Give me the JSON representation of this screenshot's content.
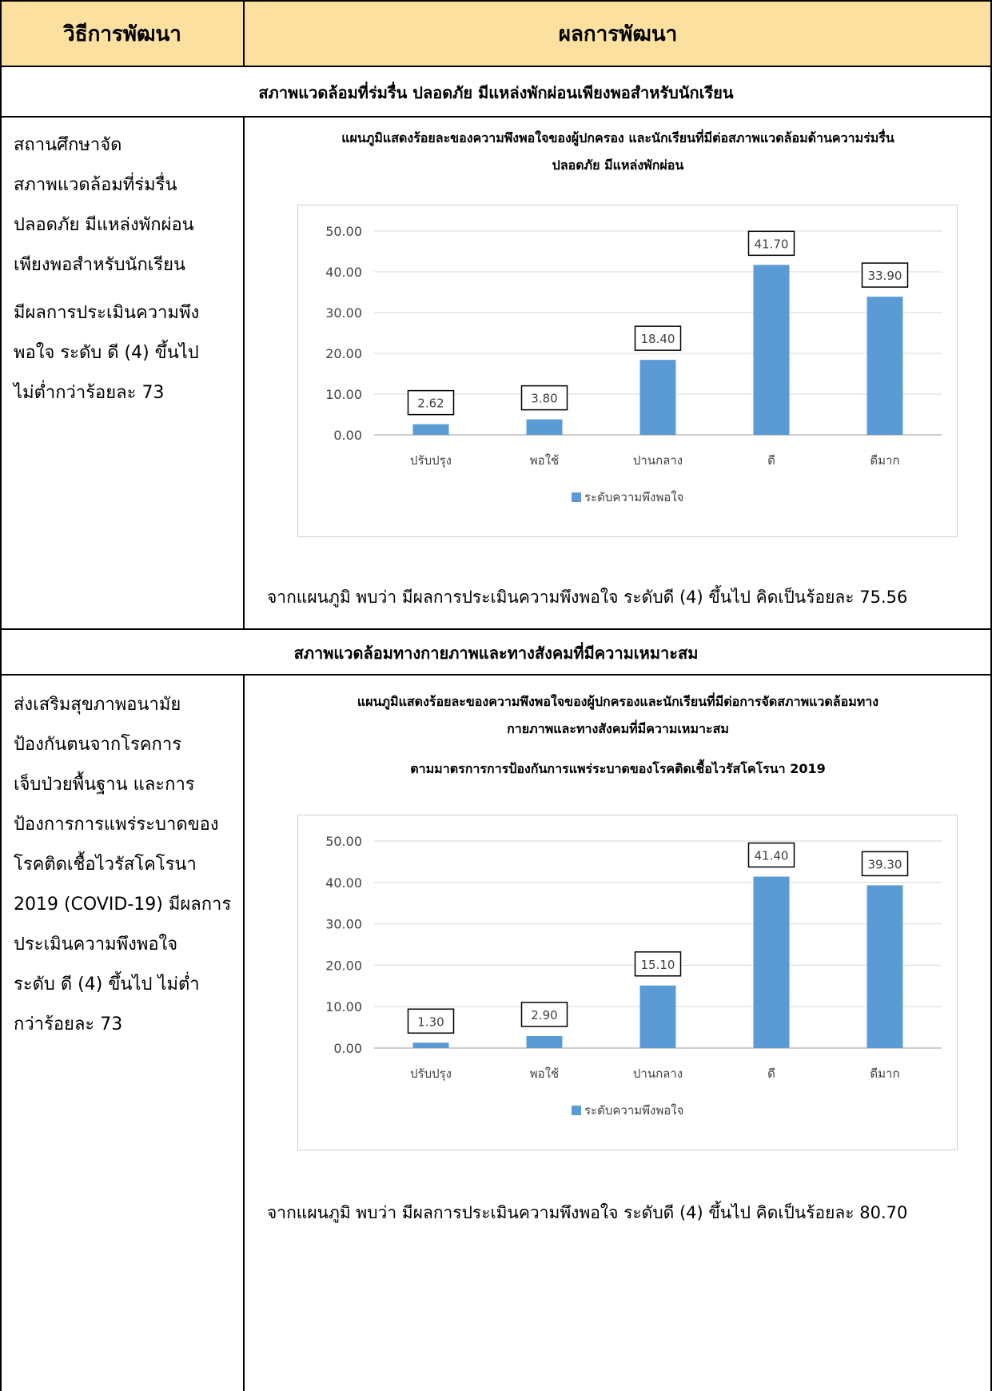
{
  "header": {
    "col1": "วิธีการพัฒนา",
    "col2": "ผลการพัฒนา"
  },
  "sections": [
    {
      "title": "สภาพแวดล้อมที่ร่มรื่น ปลอดภัย มีแหล่งพักผ่อนเพียงพอสำหรับนักเรียน",
      "left_lines": [
        "สถานศึกษาจัด",
        "สภาพแวดล้อมที่ร่มรื่น",
        "ปลอดภัย มีแหล่งพักผ่อน",
        "เพียงพอสำหรับนักเรียน",
        "มีผลการประเมินความพึง",
        "พอใจ ระดับ ดี (4) ขึ้นไป",
        "ไม่ต่ำกว่าร้อยละ 73"
      ],
      "chart_title_lines": [
        "แผนภูมิแสดงร้อยละของความพึงพอใจของผู้ปกครอง และนักเรียนที่มีต่อสภาพแวดล้อมด้านความร่มรื่น",
        "ปลอดภัย มีแหล่งพักผ่อน"
      ],
      "summary": "จากแผนภูมิ พบว่า มีผลการประเมินความพึงพอใจ ระดับดี (4) ขึ้นไป คิดเป็นร้อยละ 75.56"
    },
    {
      "title": "สภาพแวดล้อมทางกายภาพและทางสังคมที่มีความเหมาะสม",
      "left_lines": [
        "ส่งเสริมสุขภาพอนามัย",
        "ป้องกันตนจากโรคการ",
        "เจ็บป่วยพื้นฐาน และการ",
        "ป้องการการแพร่ระบาดของ",
        "โรคติดเชื้อไวรัสโคโรนา",
        "2019 (COVID-19) มีผลการ",
        "ประเมินความพึงพอใจ",
        "ระดับ ดี (4) ขึ้นไป ไม่ต่ำ",
        "กว่าร้อยละ 73"
      ],
      "chart_title_lines": [
        "แผนภูมิแสดงร้อยละของความพึงพอใจของผู้ปกครองและนักเรียนที่มีต่อการจัดสภาพแวดล้อมทาง",
        "กายภาพและทางสังคมที่มีความเหมาะสม",
        "ตามมาตรการการป้องกันการแพร่ระบาดของโรคติดเชื้อไวรัสโคโรนา 2019"
      ],
      "summary": "จากแผนภูมิ พบว่า มีผลการประเมินความพึงพอใจ ระดับดี (4) ขึ้นไป คิดเป็นร้อยละ 80.70"
    }
  ],
  "colors": {
    "header_bg": "#fbe0a0",
    "bar": "#5b9bd5",
    "grid": "#d9d9d9",
    "frame": "#d0d0d0"
  },
  "chart_data": [
    {
      "type": "bar",
      "categories": [
        "ปรับปรุง",
        "พอใช้",
        "ปานกลาง",
        "ดี",
        "ดีมาก"
      ],
      "series": [
        {
          "name": "ระดับความพึงพอใจ",
          "values": [
            2.62,
            3.8,
            18.4,
            41.7,
            33.9
          ]
        }
      ],
      "value_labels": [
        "2.62",
        "3.80",
        "18.40",
        "41.70",
        "33.90"
      ],
      "yticks": [
        "0.00",
        "10.00",
        "20.00",
        "30.00",
        "40.00",
        "50.00"
      ],
      "ylim": [
        0,
        50
      ],
      "grid": true,
      "legend": "bottom",
      "legend_label": "ระดับความพึงพอใจ"
    },
    {
      "type": "bar",
      "categories": [
        "ปรับปรุง",
        "พอใช้",
        "ปานกลาง",
        "ดี",
        "ดีมาก"
      ],
      "series": [
        {
          "name": "ระดับความพึงพอใจ",
          "values": [
            1.3,
            2.9,
            15.1,
            41.4,
            39.3
          ]
        }
      ],
      "value_labels": [
        "1.30",
        "2.90",
        "15.10",
        "41.40",
        "39.30"
      ],
      "yticks": [
        "0.00",
        "10.00",
        "20.00",
        "30.00",
        "40.00",
        "50.00"
      ],
      "ylim": [
        0,
        50
      ],
      "grid": true,
      "legend": "bottom",
      "legend_label": "ระดับความพึงพอใจ"
    }
  ]
}
